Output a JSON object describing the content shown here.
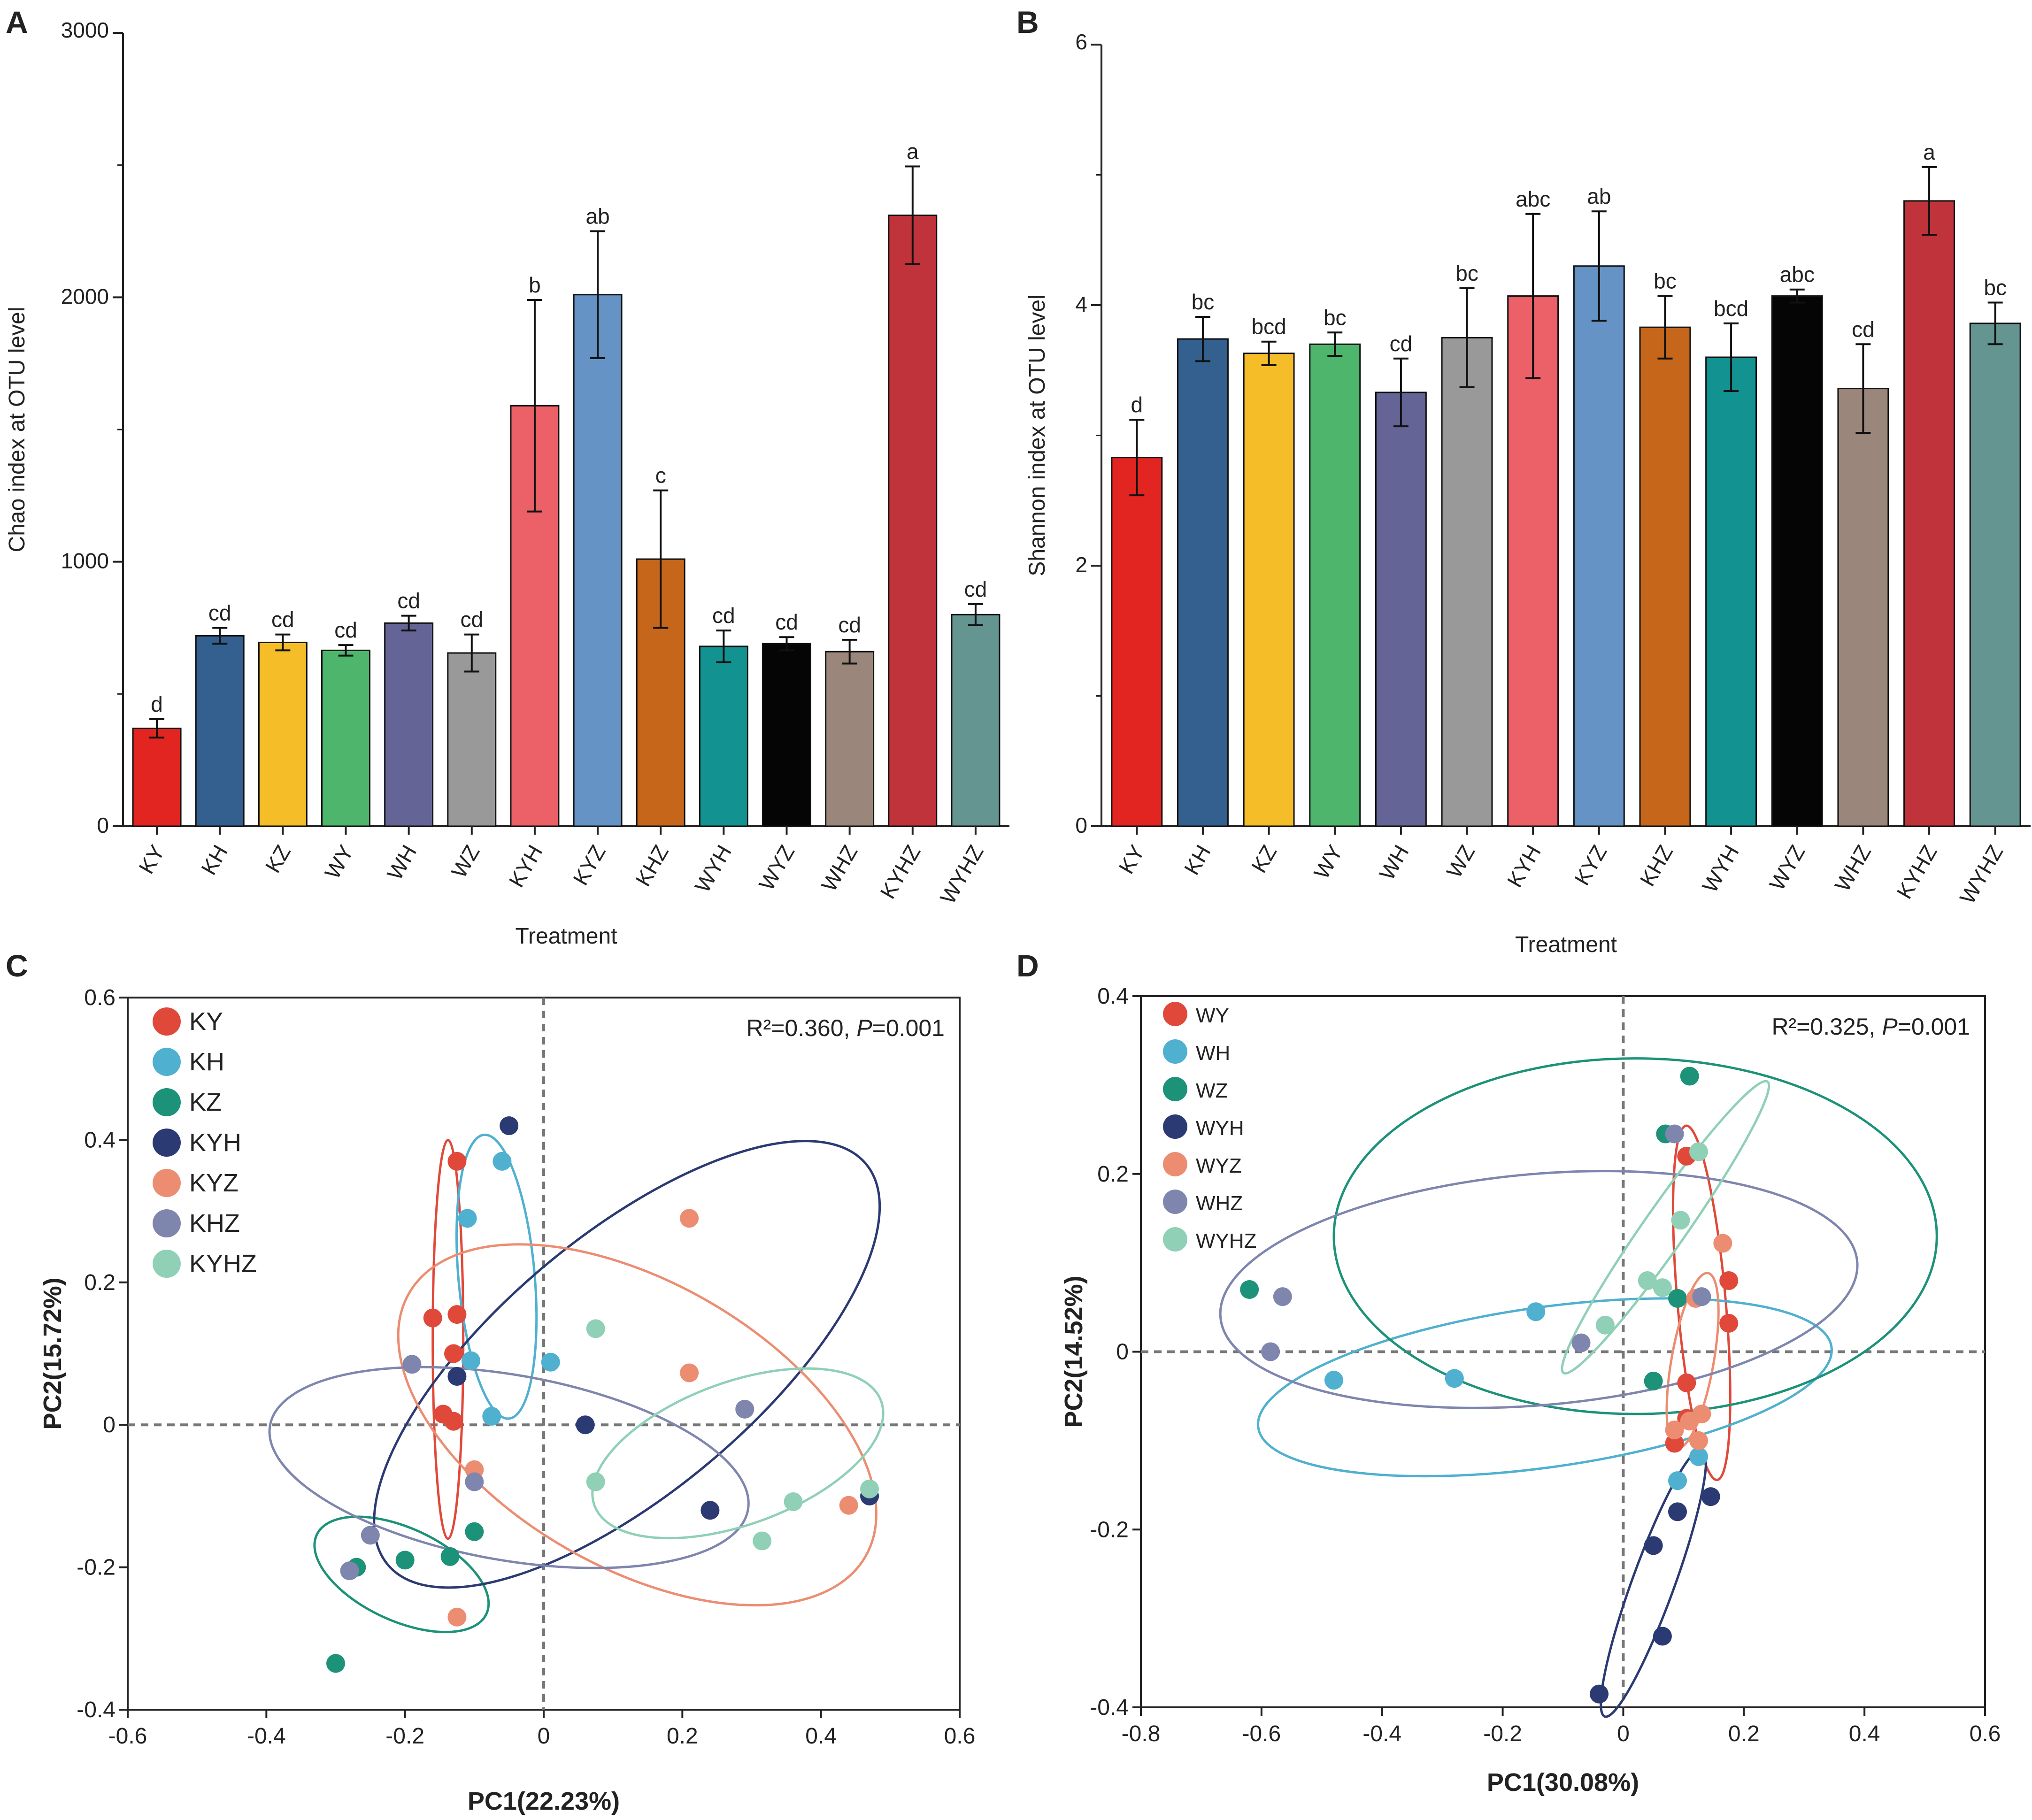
{
  "chart_data": [
    {
      "panel_label": "A",
      "type": "bar",
      "title": "",
      "xlabel": "Treatment",
      "ylabel": "Chao index at OTU level",
      "ylim": [
        0,
        3000
      ],
      "yticks": [
        "0",
        "1000",
        "2000",
        "3000"
      ],
      "categories": [
        "KY",
        "KH",
        "KZ",
        "WY",
        "WH",
        "WZ",
        "KYH",
        "KYZ",
        "KHZ",
        "WYH",
        "WYZ",
        "WHZ",
        "KYHZ",
        "WYHZ"
      ],
      "values": [
        370,
        720,
        695,
        665,
        768,
        655,
        1590,
        2010,
        1010,
        680,
        690,
        660,
        2310,
        800
      ],
      "errors": [
        35,
        30,
        30,
        20,
        28,
        70,
        400,
        240,
        260,
        60,
        25,
        45,
        185,
        40
      ],
      "letters": [
        "d",
        "cd",
        "cd",
        "cd",
        "cd",
        "cd",
        "b",
        "ab",
        "c",
        "cd",
        "cd",
        "cd",
        "a",
        "cd"
      ],
      "colors": [
        "#e32521",
        "#34608f",
        "#f5bd28",
        "#4db66c",
        "#646496",
        "#999999",
        "#ec6068",
        "#6593c5",
        "#c6661b",
        "#139292",
        "#050505",
        "#9a867a",
        "#c1333b",
        "#649590"
      ]
    },
    {
      "panel_label": "B",
      "type": "bar",
      "title": "",
      "xlabel": "Treatment",
      "ylabel": "Shannon index at OTU level",
      "ylim": [
        0,
        6
      ],
      "yticks": [
        "0",
        "2",
        "4",
        "6"
      ],
      "categories": [
        "KY",
        "KH",
        "KZ",
        "WY",
        "WH",
        "WZ",
        "KYH",
        "KYZ",
        "KHZ",
        "WYH",
        "WYZ",
        "WHZ",
        "KYHZ",
        "WYHZ"
      ],
      "values": [
        2.83,
        3.74,
        3.63,
        3.7,
        3.33,
        3.75,
        4.07,
        4.3,
        3.83,
        3.6,
        4.07,
        3.36,
        4.8,
        3.86
      ],
      "errors": [
        0.29,
        0.17,
        0.09,
        0.09,
        0.26,
        0.38,
        0.63,
        0.42,
        0.24,
        0.26,
        0.05,
        0.34,
        0.26,
        0.16
      ],
      "letters": [
        "d",
        "bc",
        "bcd",
        "bc",
        "cd",
        "bc",
        "abc",
        "ab",
        "bc",
        "bcd",
        "abc",
        "cd",
        "a",
        "bc"
      ],
      "colors": [
        "#e32521",
        "#34608f",
        "#f5bd28",
        "#4db66c",
        "#646496",
        "#999999",
        "#ec6068",
        "#6593c5",
        "#c6661b",
        "#139292",
        "#050505",
        "#9a867a",
        "#c1333b",
        "#649590"
      ]
    },
    {
      "panel_label": "C",
      "type": "scatter",
      "title": "",
      "xlabel": "PC1(22.23%)",
      "ylabel": "PC2(15.72%)",
      "xlim": [
        -0.6,
        0.6
      ],
      "ylim": [
        -0.4,
        0.6
      ],
      "xticks": [
        "-0.6",
        "-0.4",
        "-0.2",
        "0",
        "0.2",
        "0.4",
        "0.6"
      ],
      "yticks": [
        "-0.4",
        "-0.2",
        "0",
        "0.2",
        "0.4",
        "0.6"
      ],
      "annotation_prefix": "R²=0.360, ",
      "annotation_p_label": "P",
      "annotation_p_value": "=0.001",
      "legend_position": "top-left",
      "series": [
        {
          "name": "KY",
          "color": "#e0493a",
          "points": [
            [
              -0.125,
              0.37
            ],
            [
              -0.16,
              0.15
            ],
            [
              -0.125,
              0.155
            ],
            [
              -0.13,
              0.1
            ],
            [
              -0.145,
              0.015
            ],
            [
              -0.13,
              0.005
            ]
          ],
          "ellipse": {
            "cx": -0.138,
            "cy": 0.12,
            "rx": 0.022,
            "ry": 0.28,
            "angle": 0
          }
        },
        {
          "name": "KH",
          "color": "#4fb0d0",
          "points": [
            [
              -0.06,
              0.37
            ],
            [
              -0.11,
              0.29
            ],
            [
              -0.105,
              0.09
            ],
            [
              -0.075,
              0.012
            ],
            [
              0.01,
              0.088
            ]
          ],
          "ellipse": {
            "cx": -0.068,
            "cy": 0.208,
            "rx": 0.055,
            "ry": 0.2,
            "angle": -5
          }
        },
        {
          "name": "KZ",
          "color": "#1c9278",
          "points": [
            [
              -0.3,
              -0.335
            ],
            [
              -0.27,
              -0.2
            ],
            [
              -0.2,
              -0.19
            ],
            [
              -0.135,
              -0.185
            ],
            [
              -0.1,
              -0.15
            ]
          ],
          "ellipse": {
            "cx": -0.205,
            "cy": -0.21,
            "rx": 0.135,
            "ry": 0.065,
            "angle": 25
          }
        },
        {
          "name": "KYH",
          "color": "#2b3a72",
          "points": [
            [
              -0.05,
              0.42
            ],
            [
              -0.125,
              0.068
            ],
            [
              0.06,
              0.0
            ],
            [
              0.24,
              -0.12
            ],
            [
              0.47,
              -0.1
            ]
          ],
          "ellipse": {
            "cx": 0.12,
            "cy": 0.085,
            "rx": 0.45,
            "ry": 0.18,
            "angle": -40
          }
        },
        {
          "name": "KYZ",
          "color": "#ec8d72",
          "points": [
            [
              0.21,
              0.29
            ],
            [
              0.21,
              0.073
            ],
            [
              -0.1,
              -0.063
            ],
            [
              0.44,
              -0.113
            ],
            [
              -0.125,
              -0.27
            ]
          ],
          "ellipse": {
            "cx": 0.135,
            "cy": 0.0,
            "rx": 0.38,
            "ry": 0.2,
            "angle": 30
          }
        },
        {
          "name": "KHZ",
          "color": "#7f86ae",
          "points": [
            [
              -0.19,
              0.085
            ],
            [
              0.29,
              0.022
            ],
            [
              -0.1,
              -0.08
            ],
            [
              -0.25,
              -0.155
            ],
            [
              -0.28,
              -0.205
            ]
          ],
          "ellipse": {
            "cx": -0.05,
            "cy": -0.06,
            "rx": 0.35,
            "ry": 0.13,
            "angle": 10
          }
        },
        {
          "name": "KYHZ",
          "color": "#8fd0b6",
          "points": [
            [
              0.075,
              0.135
            ],
            [
              0.075,
              -0.08
            ],
            [
              0.36,
              -0.108
            ],
            [
              0.315,
              -0.163
            ],
            [
              0.47,
              -0.09
            ]
          ],
          "ellipse": {
            "cx": 0.28,
            "cy": -0.04,
            "rx": 0.22,
            "ry": 0.1,
            "angle": -20
          }
        }
      ]
    },
    {
      "panel_label": "D",
      "type": "scatter",
      "title": "",
      "xlabel": "PC1(30.08%)",
      "ylabel": "PC2(14.52%)",
      "xlim": [
        -0.8,
        0.6
      ],
      "ylim": [
        -0.4,
        0.4
      ],
      "xticks": [
        "-0.8",
        "-0.6",
        "-0.4",
        "-0.2",
        "0",
        "0.2",
        "0.4",
        "0.6"
      ],
      "yticks": [
        "-0.4",
        "-0.2",
        "0",
        "0.2",
        "0.4"
      ],
      "annotation_prefix": "R²=0.325, ",
      "annotation_p_label": "P",
      "annotation_p_value": "=0.001",
      "legend_position": "top-left",
      "series": [
        {
          "name": "WY",
          "color": "#e0493a",
          "points": [
            [
              0.105,
              0.22
            ],
            [
              0.175,
              0.08
            ],
            [
              0.175,
              0.032
            ],
            [
              0.105,
              -0.035
            ],
            [
              0.085,
              -0.103
            ],
            [
              0.105,
              -0.075
            ]
          ],
          "ellipse": {
            "cx": 0.13,
            "cy": 0.055,
            "rx": 0.04,
            "ry": 0.2,
            "angle": -5
          }
        },
        {
          "name": "WH",
          "color": "#4fb0d0",
          "points": [
            [
              -0.48,
              -0.032
            ],
            [
              -0.28,
              -0.03
            ],
            [
              -0.145,
              0.045
            ],
            [
              0.125,
              -0.118
            ],
            [
              0.09,
              -0.145
            ]
          ],
          "ellipse": {
            "cx": -0.13,
            "cy": -0.04,
            "rx": 0.48,
            "ry": 0.09,
            "angle": -8
          }
        },
        {
          "name": "WZ",
          "color": "#1c9278",
          "points": [
            [
              -0.62,
              0.07
            ],
            [
              0.11,
              0.31
            ],
            [
              0.07,
              0.245
            ],
            [
              0.09,
              0.06
            ],
            [
              0.05,
              -0.033
            ]
          ],
          "ellipse": {
            "cx": 0.02,
            "cy": 0.13,
            "rx": 0.5,
            "ry": 0.2,
            "angle": 0
          }
        },
        {
          "name": "WYH",
          "color": "#2b3a72",
          "points": [
            [
              0.145,
              -0.163
            ],
            [
              0.09,
              -0.18
            ],
            [
              0.05,
              -0.218
            ],
            [
              0.065,
              -0.32
            ],
            [
              -0.04,
              -0.385
            ]
          ],
          "ellipse": {
            "cx": 0.05,
            "cy": -0.26,
            "rx": 0.035,
            "ry": 0.16,
            "angle": 20
          }
        },
        {
          "name": "WYZ",
          "color": "#ec8d72",
          "points": [
            [
              0.165,
              0.122
            ],
            [
              0.12,
              0.06
            ],
            [
              0.125,
              -0.1
            ],
            [
              0.13,
              -0.07
            ],
            [
              0.11,
              -0.078
            ],
            [
              0.085,
              -0.088
            ]
          ],
          "ellipse": {
            "cx": 0.115,
            "cy": -0.01,
            "rx": 0.035,
            "ry": 0.1,
            "angle": 10
          }
        },
        {
          "name": "WHZ",
          "color": "#7f86ae",
          "points": [
            [
              -0.565,
              0.062
            ],
            [
              -0.585,
              0.0
            ],
            [
              -0.07,
              0.01
            ],
            [
              0.085,
              0.245
            ],
            [
              0.13,
              0.062
            ]
          ],
          "ellipse": {
            "cx": -0.14,
            "cy": 0.07,
            "rx": 0.53,
            "ry": 0.13,
            "angle": -5
          }
        },
        {
          "name": "WYHZ",
          "color": "#8fd0b6",
          "points": [
            [
              0.125,
              0.225
            ],
            [
              0.095,
              0.148
            ],
            [
              0.04,
              0.08
            ],
            [
              0.065,
              0.072
            ],
            [
              -0.03,
              0.03
            ]
          ],
          "ellipse": {
            "cx": 0.07,
            "cy": 0.14,
            "rx": 0.035,
            "ry": 0.2,
            "angle": 35
          }
        }
      ]
    }
  ]
}
